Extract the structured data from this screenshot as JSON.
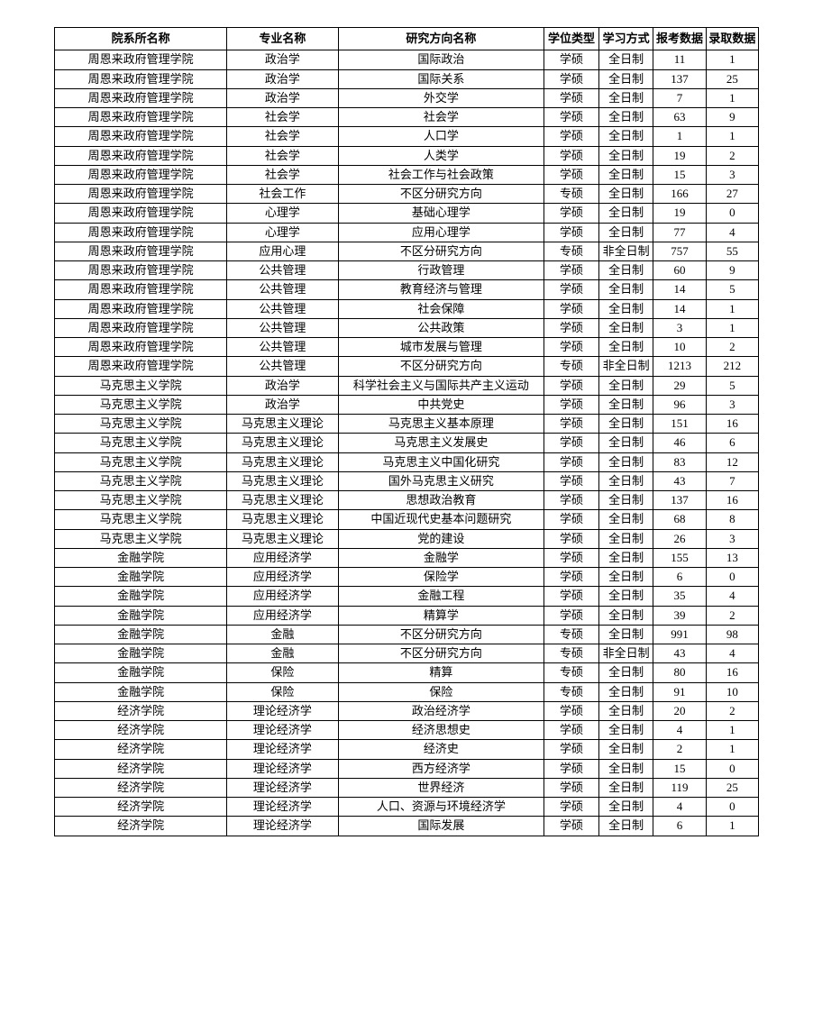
{
  "table": {
    "columns": [
      "院系所名称",
      "专业名称",
      "研究方向名称",
      "学位类型",
      "学习方式",
      "报考数据",
      "录取数据"
    ],
    "rows": [
      [
        "周恩来政府管理学院",
        "政治学",
        "国际政治",
        "学硕",
        "全日制",
        "11",
        "1"
      ],
      [
        "周恩来政府管理学院",
        "政治学",
        "国际关系",
        "学硕",
        "全日制",
        "137",
        "25"
      ],
      [
        "周恩来政府管理学院",
        "政治学",
        "外交学",
        "学硕",
        "全日制",
        "7",
        "1"
      ],
      [
        "周恩来政府管理学院",
        "社会学",
        "社会学",
        "学硕",
        "全日制",
        "63",
        "9"
      ],
      [
        "周恩来政府管理学院",
        "社会学",
        "人口学",
        "学硕",
        "全日制",
        "1",
        "1"
      ],
      [
        "周恩来政府管理学院",
        "社会学",
        "人类学",
        "学硕",
        "全日制",
        "19",
        "2"
      ],
      [
        "周恩来政府管理学院",
        "社会学",
        "社会工作与社会政策",
        "学硕",
        "全日制",
        "15",
        "3"
      ],
      [
        "周恩来政府管理学院",
        "社会工作",
        "不区分研究方向",
        "专硕",
        "全日制",
        "166",
        "27"
      ],
      [
        "周恩来政府管理学院",
        "心理学",
        "基础心理学",
        "学硕",
        "全日制",
        "19",
        "0"
      ],
      [
        "周恩来政府管理学院",
        "心理学",
        "应用心理学",
        "学硕",
        "全日制",
        "77",
        "4"
      ],
      [
        "周恩来政府管理学院",
        "应用心理",
        "不区分研究方向",
        "专硕",
        "非全日制",
        "757",
        "55"
      ],
      [
        "周恩来政府管理学院",
        "公共管理",
        "行政管理",
        "学硕",
        "全日制",
        "60",
        "9"
      ],
      [
        "周恩来政府管理学院",
        "公共管理",
        "教育经济与管理",
        "学硕",
        "全日制",
        "14",
        "5"
      ],
      [
        "周恩来政府管理学院",
        "公共管理",
        "社会保障",
        "学硕",
        "全日制",
        "14",
        "1"
      ],
      [
        "周恩来政府管理学院",
        "公共管理",
        "公共政策",
        "学硕",
        "全日制",
        "3",
        "1"
      ],
      [
        "周恩来政府管理学院",
        "公共管理",
        "城市发展与管理",
        "学硕",
        "全日制",
        "10",
        "2"
      ],
      [
        "周恩来政府管理学院",
        "公共管理",
        "不区分研究方向",
        "专硕",
        "非全日制",
        "1213",
        "212"
      ],
      [
        "马克思主义学院",
        "政治学",
        "科学社会主义与国际共产主义运动",
        "学硕",
        "全日制",
        "29",
        "5"
      ],
      [
        "马克思主义学院",
        "政治学",
        "中共党史",
        "学硕",
        "全日制",
        "96",
        "3"
      ],
      [
        "马克思主义学院",
        "马克思主义理论",
        "马克思主义基本原理",
        "学硕",
        "全日制",
        "151",
        "16"
      ],
      [
        "马克思主义学院",
        "马克思主义理论",
        "马克思主义发展史",
        "学硕",
        "全日制",
        "46",
        "6"
      ],
      [
        "马克思主义学院",
        "马克思主义理论",
        "马克思主义中国化研究",
        "学硕",
        "全日制",
        "83",
        "12"
      ],
      [
        "马克思主义学院",
        "马克思主义理论",
        "国外马克思主义研究",
        "学硕",
        "全日制",
        "43",
        "7"
      ],
      [
        "马克思主义学院",
        "马克思主义理论",
        "思想政治教育",
        "学硕",
        "全日制",
        "137",
        "16"
      ],
      [
        "马克思主义学院",
        "马克思主义理论",
        "中国近现代史基本问题研究",
        "学硕",
        "全日制",
        "68",
        "8"
      ],
      [
        "马克思主义学院",
        "马克思主义理论",
        "党的建设",
        "学硕",
        "全日制",
        "26",
        "3"
      ],
      [
        "金融学院",
        "应用经济学",
        "金融学",
        "学硕",
        "全日制",
        "155",
        "13"
      ],
      [
        "金融学院",
        "应用经济学",
        "保险学",
        "学硕",
        "全日制",
        "6",
        "0"
      ],
      [
        "金融学院",
        "应用经济学",
        "金融工程",
        "学硕",
        "全日制",
        "35",
        "4"
      ],
      [
        "金融学院",
        "应用经济学",
        "精算学",
        "学硕",
        "全日制",
        "39",
        "2"
      ],
      [
        "金融学院",
        "金融",
        "不区分研究方向",
        "专硕",
        "全日制",
        "991",
        "98"
      ],
      [
        "金融学院",
        "金融",
        "不区分研究方向",
        "专硕",
        "非全日制",
        "43",
        "4"
      ],
      [
        "金融学院",
        "保险",
        "精算",
        "专硕",
        "全日制",
        "80",
        "16"
      ],
      [
        "金融学院",
        "保险",
        "保险",
        "专硕",
        "全日制",
        "91",
        "10"
      ],
      [
        "经济学院",
        "理论经济学",
        "政治经济学",
        "学硕",
        "全日制",
        "20",
        "2"
      ],
      [
        "经济学院",
        "理论经济学",
        "经济思想史",
        "学硕",
        "全日制",
        "4",
        "1"
      ],
      [
        "经济学院",
        "理论经济学",
        "经济史",
        "学硕",
        "全日制",
        "2",
        "1"
      ],
      [
        "经济学院",
        "理论经济学",
        "西方经济学",
        "学硕",
        "全日制",
        "15",
        "0"
      ],
      [
        "经济学院",
        "理论经济学",
        "世界经济",
        "学硕",
        "全日制",
        "119",
        "25"
      ],
      [
        "经济学院",
        "理论经济学",
        "人口、资源与环境经济学",
        "学硕",
        "全日制",
        "4",
        "0"
      ],
      [
        "经济学院",
        "理论经济学",
        "国际发展",
        "学硕",
        "全日制",
        "6",
        "1"
      ]
    ]
  }
}
